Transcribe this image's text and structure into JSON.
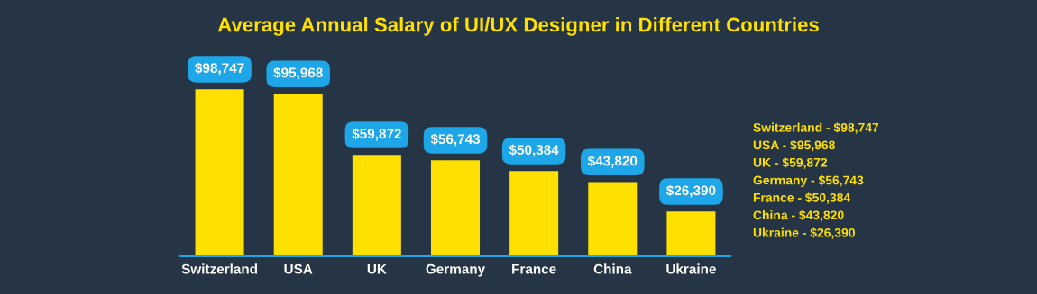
{
  "chart_data": {
    "type": "bar",
    "title": "Average Annual Salary of UI/UX Designer in Different Countries",
    "categories": [
      "Switzerland",
      "USA",
      "UK",
      "Germany",
      "France",
      "China",
      "Ukraine"
    ],
    "values": [
      98747,
      95968,
      59872,
      56743,
      50384,
      43820,
      26390
    ],
    "value_labels": [
      "$98,747",
      "$95,968",
      "$59,872",
      "$56,743",
      "$50,384",
      "$43,820",
      "$26,390"
    ],
    "color": "#ffe000",
    "annotations": [
      "Switzerland - $98,747",
      "USA - $95,968",
      "UK - $59,872",
      "Germany - $56,743",
      "France - $50,384",
      "China - $43,820",
      "Ukraine - $26,390"
    ],
    "grid": false,
    "legend": false
  }
}
